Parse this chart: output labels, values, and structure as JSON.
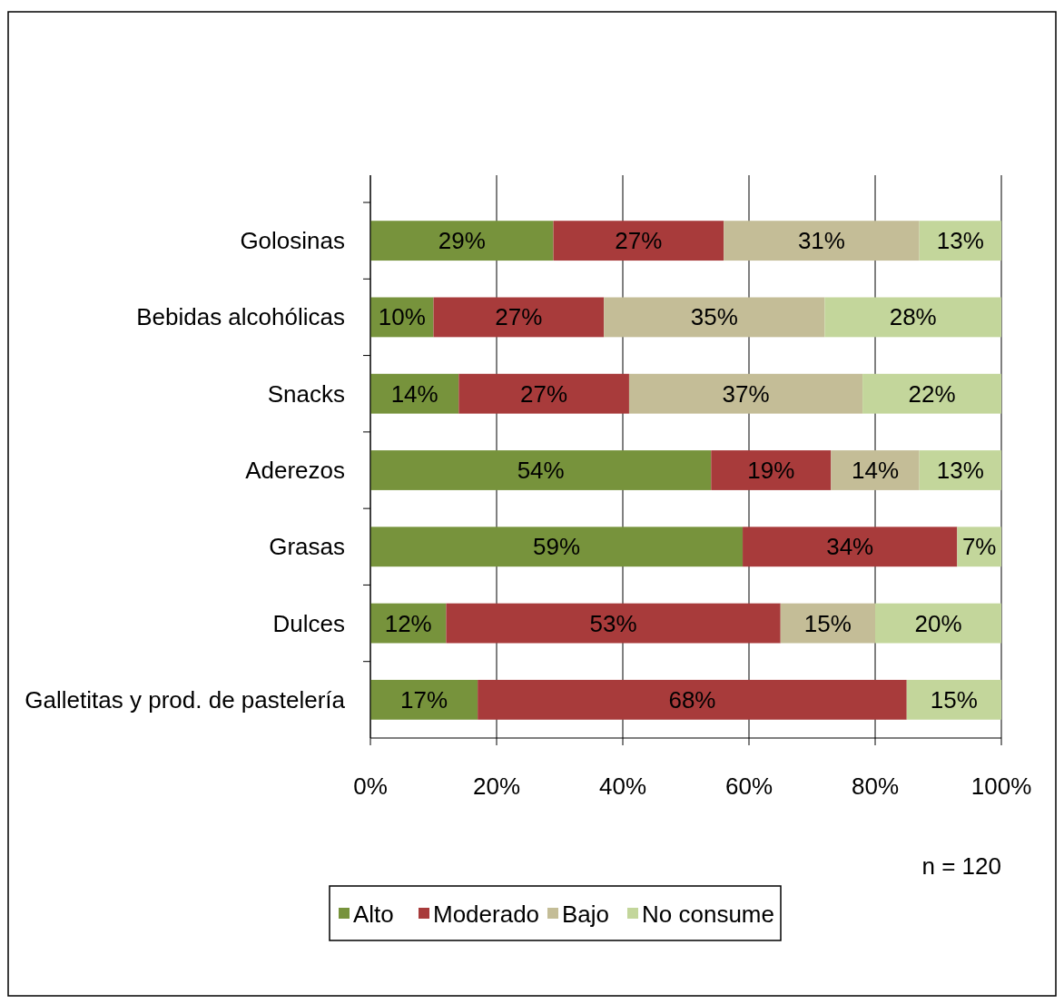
{
  "chart_data": {
    "type": "bar",
    "orientation": "horizontal",
    "stacked": true,
    "categories": [
      "Golosinas",
      "Bebidas alcohólicas",
      "Snacks",
      "Aderezos",
      "Grasas",
      "Dulces",
      "Galletitas y prod. de pastelería"
    ],
    "series": [
      {
        "name": "Alto",
        "color": "#77933c",
        "values": [
          29,
          10,
          14,
          54,
          59,
          12,
          17
        ],
        "value_labels": [
          "29%",
          "10%",
          "14%",
          "54%",
          "59%",
          "12%",
          "17%"
        ]
      },
      {
        "name": "Moderado",
        "color": "#a83b3b",
        "values": [
          27,
          27,
          27,
          19,
          34,
          53,
          68
        ],
        "value_labels": [
          "27%",
          "27%",
          "27%",
          "19%",
          "34%",
          "53%",
          "68%"
        ]
      },
      {
        "name": "Bajo",
        "color": "#c4bd97",
        "values": [
          31,
          35,
          37,
          14,
          null,
          15,
          null
        ],
        "value_labels": [
          "31%",
          "35%",
          "37%",
          "14%",
          null,
          "15%",
          null
        ]
      },
      {
        "name": "No consume",
        "color": "#c3d69b",
        "values": [
          13,
          28,
          22,
          13,
          7,
          20,
          15
        ],
        "value_labels": [
          "13%",
          "28%",
          "22%",
          "13%",
          "7%",
          "20%",
          "15%"
        ]
      }
    ],
    "xlim": [
      0,
      100
    ],
    "xticks": [
      {
        "value": 0,
        "label": "0%"
      },
      {
        "value": 20,
        "label": "20%"
      },
      {
        "value": 40,
        "label": "40%"
      },
      {
        "value": 60,
        "label": "60%"
      },
      {
        "value": 80,
        "label": "80%"
      },
      {
        "value": 100,
        "label": "100%"
      }
    ],
    "grid": "x",
    "legend": "bottom",
    "annotations": [
      "n = 120"
    ]
  }
}
